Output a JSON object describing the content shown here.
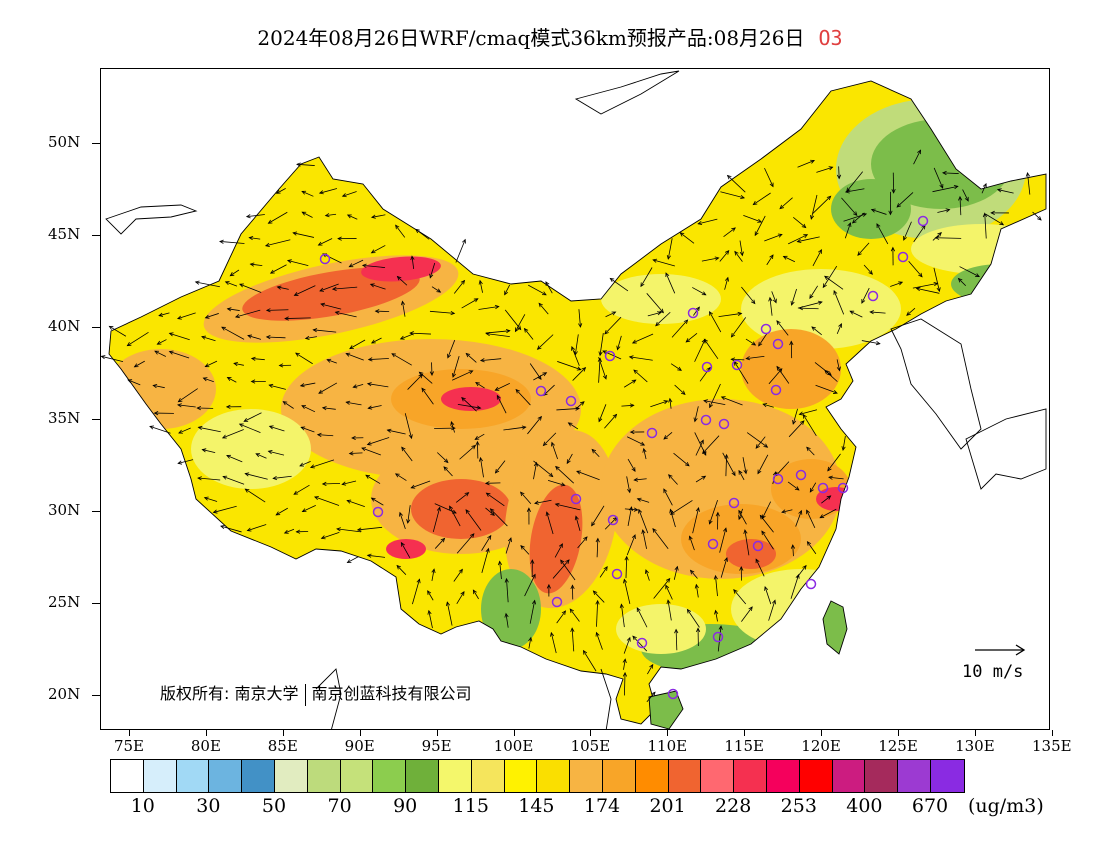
{
  "title": {
    "text": "2024年08月26日WRF/cmaq模式36km预报产品:08月26日",
    "species": "O3",
    "species_color": "#e04040"
  },
  "axes": {
    "lat_labels": [
      "50N",
      "45N",
      "40N",
      "35N",
      "30N",
      "25N",
      "20N"
    ],
    "lon_labels": [
      "75E",
      "80E",
      "85E",
      "90E",
      "95E",
      "100E",
      "105E",
      "110E",
      "115E",
      "120E",
      "125E",
      "130E",
      "135E"
    ],
    "lat_range": [
      18,
      54
    ],
    "lon_range": [
      73,
      135
    ]
  },
  "legend": {
    "colors": [
      "#ffffff",
      "#d6eefb",
      "#a1d9f5",
      "#6cb4e0",
      "#4291c6",
      "#e1ecc0",
      "#bddb7c",
      "#c5e17a",
      "#8ccd4e",
      "#6fb03a",
      "#f4f76b",
      "#f5e55c",
      "#fff200",
      "#fadf00",
      "#f7b443",
      "#f8a528",
      "#ff8c00",
      "#f06430",
      "#ff6870",
      "#f53050",
      "#f5005c",
      "#ff0000",
      "#cc1c80",
      "#a52a5c",
      "#9c3ad2",
      "#8a2be2"
    ],
    "labels": [
      "10",
      "30",
      "50",
      "70",
      "90",
      "115",
      "145",
      "174",
      "201",
      "228",
      "253",
      "400",
      "670"
    ],
    "unit": "(ug/m3)"
  },
  "copyright": {
    "prefix": "版权所有:",
    "org1": "南京大学",
    "org2": "南京创蓝科技有限公司"
  },
  "reference_vector": {
    "label": "10  m/s"
  },
  "map_colors": {
    "low_green": "#7cbd4a",
    "light_green": "#c0dc7a",
    "yellow": "#fae600",
    "light_yellow": "#f4f46a",
    "orange": "#f8a528",
    "light_orange": "#f7b443",
    "red_orange": "#f06430",
    "red": "#f53050",
    "station_ring": "#8a2be2"
  }
}
